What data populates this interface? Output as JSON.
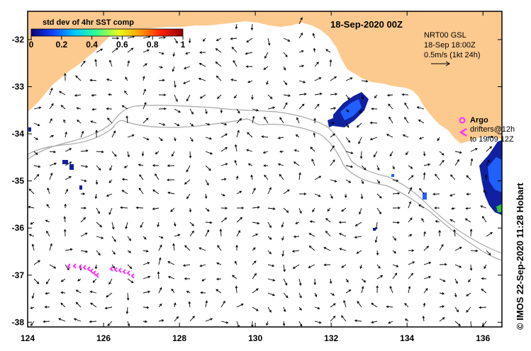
{
  "title": "18-Sep-2020 00Z",
  "colorbar": {
    "title": "std dev of 4hr SST comp",
    "ticks": [
      "0",
      "0.2",
      "0.4",
      "0.6",
      "0.8",
      "1"
    ],
    "stops": [
      "#0a007a",
      "#1040ff",
      "#00c8ff",
      "#30ff90",
      "#e8ff20",
      "#ffa000",
      "#ff2000",
      "#900000"
    ]
  },
  "info": {
    "line1": "NRT00 GSL",
    "line2": "18-Sep 18:00Z",
    "line3": "0.5m/s (1kt 24h)"
  },
  "legend": {
    "argo": "Argo",
    "drifters1": "drifters@12h",
    "drifters2": "to 19/09 12Z"
  },
  "credit": "© IMOS 22-Sep-2020 11:28 Hobart",
  "colors": {
    "land": "#fcc98f",
    "ocean": "#ffffff",
    "contour": "#a8a8a8",
    "drifter": "#ff30ff",
    "patch_dark": "#1020a0",
    "patch_mid": "#2060ff"
  },
  "map_data": {
    "lon_range": [
      124,
      136.5
    ],
    "lat_range": [
      -38.1,
      -31.4
    ],
    "x_ticks": [
      "124",
      "126",
      "128",
      "130",
      "132",
      "134",
      "136"
    ],
    "y_ticks": [
      "-32",
      "-33",
      "-34",
      "-35",
      "-36",
      "-37",
      "-38"
    ]
  }
}
